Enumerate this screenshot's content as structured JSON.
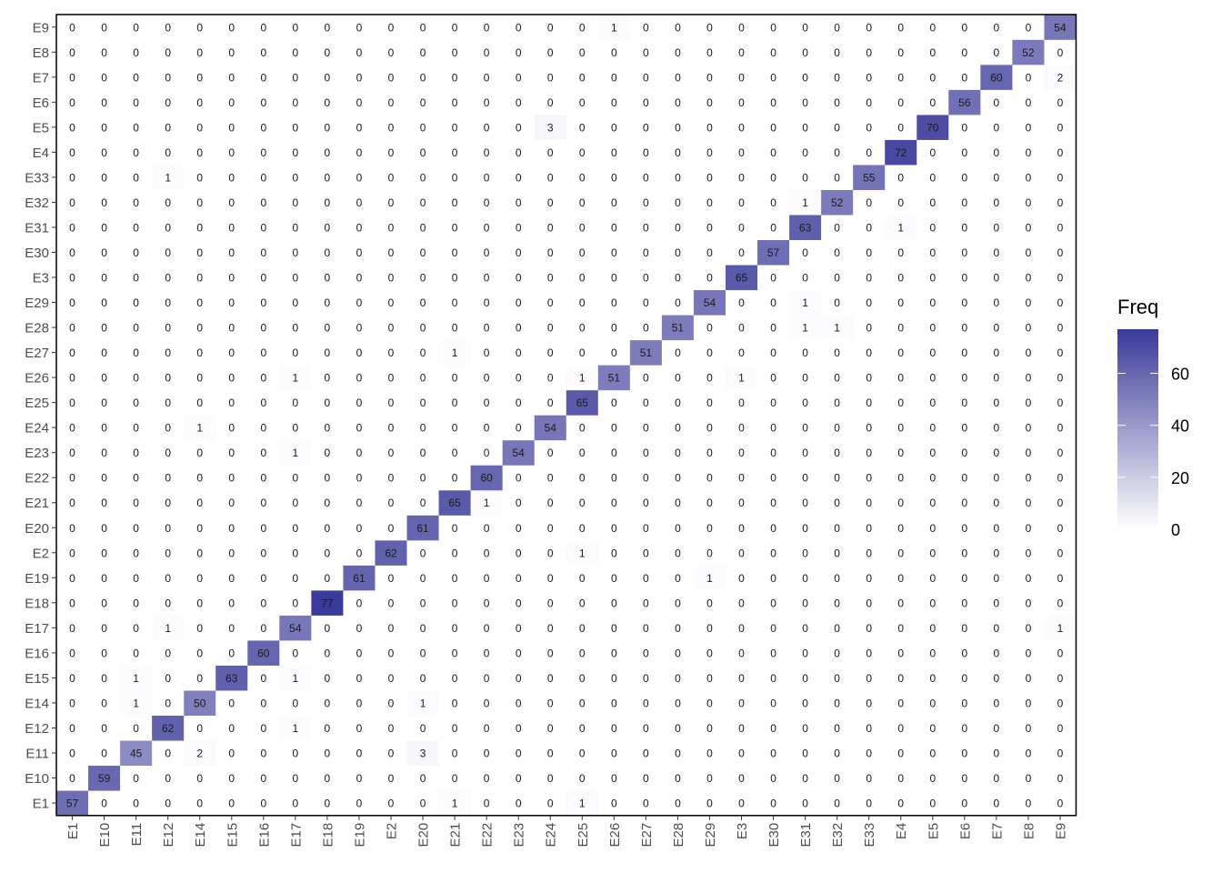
{
  "chart_data": {
    "type": "heatmap",
    "title": "",
    "xlabel": "",
    "ylabel": "",
    "categories": [
      "E1",
      "E10",
      "E11",
      "E12",
      "E14",
      "E15",
      "E16",
      "E17",
      "E18",
      "E19",
      "E2",
      "E20",
      "E21",
      "E22",
      "E23",
      "E24",
      "E25",
      "E26",
      "E27",
      "E28",
      "E29",
      "E3",
      "E30",
      "E31",
      "E32",
      "E33",
      "E4",
      "E5",
      "E6",
      "E7",
      "E8",
      "E9"
    ],
    "grid": false,
    "color_low": "#ffffff",
    "color_high": "#3b3b9a",
    "legend": {
      "title": "Freq",
      "placement": "right",
      "range": [
        0,
        77
      ],
      "ticks": [
        0,
        20,
        40,
        60
      ]
    },
    "matrix_note": "rows follow categories order (E1 at bottom); each row lists values per x category",
    "values": [
      [
        57,
        0,
        0,
        0,
        0,
        0,
        0,
        0,
        0,
        0,
        0,
        0,
        1,
        0,
        0,
        0,
        1,
        0,
        0,
        0,
        0,
        0,
        0,
        0,
        0,
        0,
        0,
        0,
        0,
        0,
        0,
        0
      ],
      [
        0,
        59,
        0,
        0,
        0,
        0,
        0,
        0,
        0,
        0,
        0,
        0,
        0,
        0,
        0,
        0,
        0,
        0,
        0,
        0,
        0,
        0,
        0,
        0,
        0,
        0,
        0,
        0,
        0,
        0,
        0,
        0
      ],
      [
        0,
        0,
        45,
        0,
        2,
        0,
        0,
        0,
        0,
        0,
        0,
        3,
        0,
        0,
        0,
        0,
        0,
        0,
        0,
        0,
        0,
        0,
        0,
        0,
        0,
        0,
        0,
        0,
        0,
        0,
        0,
        0
      ],
      [
        0,
        0,
        0,
        62,
        0,
        0,
        0,
        1,
        0,
        0,
        0,
        0,
        0,
        0,
        0,
        0,
        0,
        0,
        0,
        0,
        0,
        0,
        0,
        0,
        0,
        0,
        0,
        0,
        0,
        0,
        0,
        0
      ],
      [
        0,
        0,
        1,
        0,
        50,
        0,
        0,
        0,
        0,
        0,
        0,
        1,
        0,
        0,
        0,
        0,
        0,
        0,
        0,
        0,
        0,
        0,
        0,
        0,
        0,
        0,
        0,
        0,
        0,
        0,
        0,
        0
      ],
      [
        0,
        0,
        1,
        0,
        0,
        63,
        0,
        1,
        0,
        0,
        0,
        0,
        0,
        0,
        0,
        0,
        0,
        0,
        0,
        0,
        0,
        0,
        0,
        0,
        0,
        0,
        0,
        0,
        0,
        0,
        0,
        0
      ],
      [
        0,
        0,
        0,
        0,
        0,
        0,
        60,
        0,
        0,
        0,
        0,
        0,
        0,
        0,
        0,
        0,
        0,
        0,
        0,
        0,
        0,
        0,
        0,
        0,
        0,
        0,
        0,
        0,
        0,
        0,
        0,
        0
      ],
      [
        0,
        0,
        0,
        1,
        0,
        0,
        0,
        54,
        0,
        0,
        0,
        0,
        0,
        0,
        0,
        0,
        0,
        0,
        0,
        0,
        0,
        0,
        0,
        0,
        0,
        0,
        0,
        0,
        0,
        0,
        0,
        1
      ],
      [
        0,
        0,
        0,
        0,
        0,
        0,
        0,
        0,
        77,
        0,
        0,
        0,
        0,
        0,
        0,
        0,
        0,
        0,
        0,
        0,
        0,
        0,
        0,
        0,
        0,
        0,
        0,
        0,
        0,
        0,
        0,
        0
      ],
      [
        0,
        0,
        0,
        0,
        0,
        0,
        0,
        0,
        0,
        61,
        0,
        0,
        0,
        0,
        0,
        0,
        0,
        0,
        0,
        0,
        1,
        0,
        0,
        0,
        0,
        0,
        0,
        0,
        0,
        0,
        0,
        0
      ],
      [
        0,
        0,
        0,
        0,
        0,
        0,
        0,
        0,
        0,
        0,
        62,
        0,
        0,
        0,
        0,
        0,
        1,
        0,
        0,
        0,
        0,
        0,
        0,
        0,
        0,
        0,
        0,
        0,
        0,
        0,
        0,
        0
      ],
      [
        0,
        0,
        0,
        0,
        0,
        0,
        0,
        0,
        0,
        0,
        0,
        61,
        0,
        0,
        0,
        0,
        0,
        0,
        0,
        0,
        0,
        0,
        0,
        0,
        0,
        0,
        0,
        0,
        0,
        0,
        0,
        0
      ],
      [
        0,
        0,
        0,
        0,
        0,
        0,
        0,
        0,
        0,
        0,
        0,
        0,
        65,
        1,
        0,
        0,
        0,
        0,
        0,
        0,
        0,
        0,
        0,
        0,
        0,
        0,
        0,
        0,
        0,
        0,
        0,
        0
      ],
      [
        0,
        0,
        0,
        0,
        0,
        0,
        0,
        0,
        0,
        0,
        0,
        0,
        0,
        60,
        0,
        0,
        0,
        0,
        0,
        0,
        0,
        0,
        0,
        0,
        0,
        0,
        0,
        0,
        0,
        0,
        0,
        0
      ],
      [
        0,
        0,
        0,
        0,
        0,
        0,
        0,
        1,
        0,
        0,
        0,
        0,
        0,
        0,
        54,
        0,
        0,
        0,
        0,
        0,
        0,
        0,
        0,
        0,
        0,
        0,
        0,
        0,
        0,
        0,
        0,
        0
      ],
      [
        0,
        0,
        0,
        0,
        1,
        0,
        0,
        0,
        0,
        0,
        0,
        0,
        0,
        0,
        0,
        54,
        0,
        0,
        0,
        0,
        0,
        0,
        0,
        0,
        0,
        0,
        0,
        0,
        0,
        0,
        0,
        0
      ],
      [
        0,
        0,
        0,
        0,
        0,
        0,
        0,
        0,
        0,
        0,
        0,
        0,
        0,
        0,
        0,
        0,
        65,
        0,
        0,
        0,
        0,
        0,
        0,
        0,
        0,
        0,
        0,
        0,
        0,
        0,
        0,
        0
      ],
      [
        0,
        0,
        0,
        0,
        0,
        0,
        0,
        1,
        0,
        0,
        0,
        0,
        0,
        0,
        0,
        0,
        1,
        51,
        0,
        0,
        0,
        1,
        0,
        0,
        0,
        0,
        0,
        0,
        0,
        0,
        0,
        0
      ],
      [
        0,
        0,
        0,
        0,
        0,
        0,
        0,
        0,
        0,
        0,
        0,
        0,
        1,
        0,
        0,
        0,
        0,
        0,
        51,
        0,
        0,
        0,
        0,
        0,
        0,
        0,
        0,
        0,
        0,
        0,
        0,
        0
      ],
      [
        0,
        0,
        0,
        0,
        0,
        0,
        0,
        0,
        0,
        0,
        0,
        0,
        0,
        0,
        0,
        0,
        0,
        0,
        0,
        51,
        0,
        0,
        0,
        1,
        1,
        0,
        0,
        0,
        0,
        0,
        0,
        0
      ],
      [
        0,
        0,
        0,
        0,
        0,
        0,
        0,
        0,
        0,
        0,
        0,
        0,
        0,
        0,
        0,
        0,
        0,
        0,
        0,
        0,
        54,
        0,
        0,
        1,
        0,
        0,
        0,
        0,
        0,
        0,
        0,
        0
      ],
      [
        0,
        0,
        0,
        0,
        0,
        0,
        0,
        0,
        0,
        0,
        0,
        0,
        0,
        0,
        0,
        0,
        0,
        0,
        0,
        0,
        0,
        65,
        0,
        0,
        0,
        0,
        0,
        0,
        0,
        0,
        0,
        0
      ],
      [
        0,
        0,
        0,
        0,
        0,
        0,
        0,
        0,
        0,
        0,
        0,
        0,
        0,
        0,
        0,
        0,
        0,
        0,
        0,
        0,
        0,
        0,
        57,
        0,
        0,
        0,
        0,
        0,
        0,
        0,
        0,
        0
      ],
      [
        0,
        0,
        0,
        0,
        0,
        0,
        0,
        0,
        0,
        0,
        0,
        0,
        0,
        0,
        0,
        0,
        0,
        0,
        0,
        0,
        0,
        0,
        0,
        63,
        0,
        0,
        1,
        0,
        0,
        0,
        0,
        0
      ],
      [
        0,
        0,
        0,
        0,
        0,
        0,
        0,
        0,
        0,
        0,
        0,
        0,
        0,
        0,
        0,
        0,
        0,
        0,
        0,
        0,
        0,
        0,
        0,
        1,
        52,
        0,
        0,
        0,
        0,
        0,
        0,
        0
      ],
      [
        0,
        0,
        0,
        1,
        0,
        0,
        0,
        0,
        0,
        0,
        0,
        0,
        0,
        0,
        0,
        0,
        0,
        0,
        0,
        0,
        0,
        0,
        0,
        0,
        0,
        55,
        0,
        0,
        0,
        0,
        0,
        0
      ],
      [
        0,
        0,
        0,
        0,
        0,
        0,
        0,
        0,
        0,
        0,
        0,
        0,
        0,
        0,
        0,
        0,
        0,
        0,
        0,
        0,
        0,
        0,
        0,
        0,
        0,
        0,
        72,
        0,
        0,
        0,
        0,
        0
      ],
      [
        0,
        0,
        0,
        0,
        0,
        0,
        0,
        0,
        0,
        0,
        0,
        0,
        0,
        0,
        0,
        3,
        0,
        0,
        0,
        0,
        0,
        0,
        0,
        0,
        0,
        0,
        0,
        70,
        0,
        0,
        0,
        0
      ],
      [
        0,
        0,
        0,
        0,
        0,
        0,
        0,
        0,
        0,
        0,
        0,
        0,
        0,
        0,
        0,
        0,
        0,
        0,
        0,
        0,
        0,
        0,
        0,
        0,
        0,
        0,
        0,
        0,
        56,
        0,
        0,
        0
      ],
      [
        0,
        0,
        0,
        0,
        0,
        0,
        0,
        0,
        0,
        0,
        0,
        0,
        0,
        0,
        0,
        0,
        0,
        0,
        0,
        0,
        0,
        0,
        0,
        0,
        0,
        0,
        0,
        0,
        0,
        60,
        0,
        2
      ],
      [
        0,
        0,
        0,
        0,
        0,
        0,
        0,
        0,
        0,
        0,
        0,
        0,
        0,
        0,
        0,
        0,
        0,
        0,
        0,
        0,
        0,
        0,
        0,
        0,
        0,
        0,
        0,
        0,
        0,
        0,
        52,
        0
      ],
      [
        0,
        0,
        0,
        0,
        0,
        0,
        0,
        0,
        0,
        0,
        0,
        0,
        0,
        0,
        0,
        0,
        0,
        1,
        0,
        0,
        0,
        0,
        0,
        0,
        0,
        0,
        0,
        0,
        0,
        0,
        0,
        54
      ]
    ]
  }
}
